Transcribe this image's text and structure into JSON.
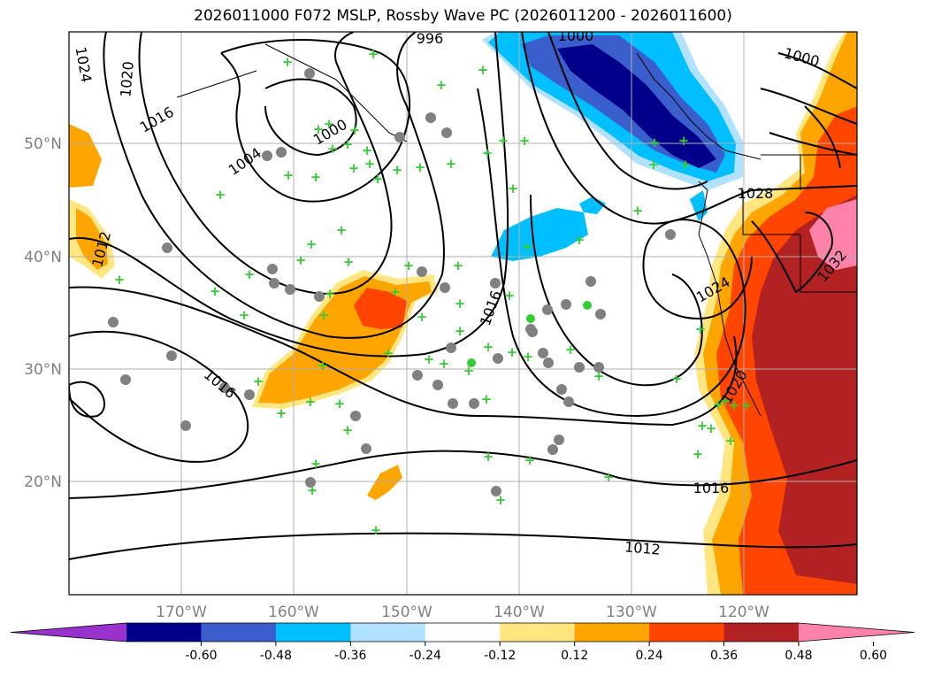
{
  "title": "2026011000 F072 MSLP, Rossby Wave PC (2026011200 - 2026011600)",
  "map": {
    "lat_labels": [
      "50°N",
      "40°N",
      "30°N",
      "20°N"
    ],
    "lon_labels": [
      "170°W",
      "160°W",
      "150°W",
      "140°W",
      "130°W",
      "120°W"
    ],
    "isobar_labels": [
      "996",
      "1000",
      "1000",
      "1004",
      "1012",
      "1016",
      "1016",
      "1016",
      "1012",
      "1020",
      "1024",
      "1028",
      "1024",
      "1032",
      "1016",
      "1012",
      "1020",
      "1000"
    ]
  },
  "colorbar": {
    "ticks": [
      "-0.60",
      "-0.48",
      "-0.36",
      "-0.24",
      "-0.12",
      "0.12",
      "0.24",
      "0.36",
      "0.48",
      "0.60"
    ],
    "colors": [
      "#9932CC",
      "#00008B",
      "#3A5FCD",
      "#00BFFF",
      "#B0E2FF",
      "#FFFFFF",
      "#FFE680",
      "#FFA500",
      "#FF4500",
      "#B22222",
      "#FF82AB"
    ]
  },
  "legend_colors": {
    "station_circle": "#808080",
    "station_marker": "#32CD32"
  }
}
